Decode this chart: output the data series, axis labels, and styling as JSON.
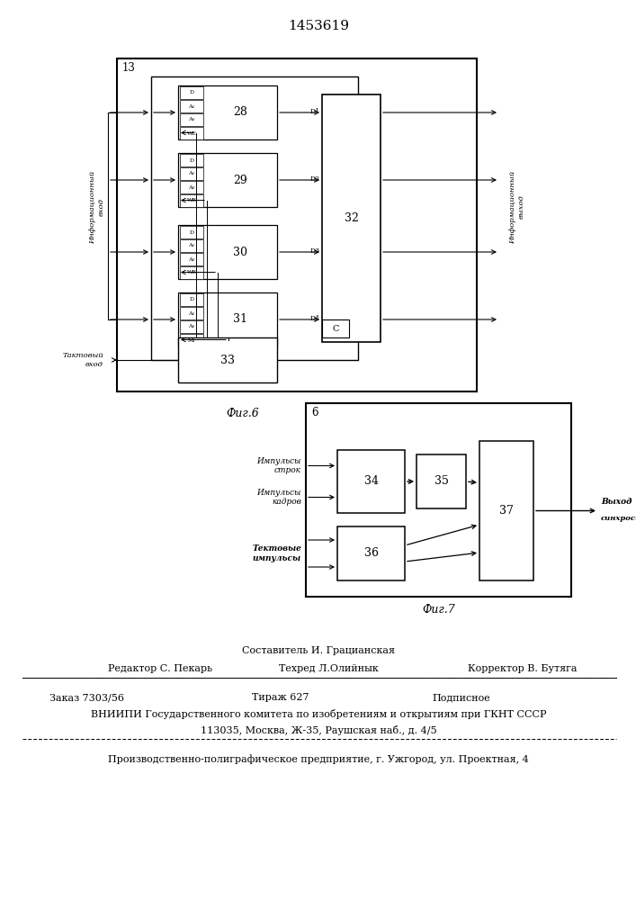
{
  "patent_number": "1453619",
  "fig6_label": "13",
  "fig6_caption": "Фиг.6",
  "fig7_caption": "Фиг.7",
  "fig7_label": "6",
  "info_vhod": "Информационный\nвход",
  "info_vyhod": "Информационный\nвыход",
  "takt_vhod": "Тактовый\nвход",
  "impulsy_strok": "Импульсы\nстрок",
  "impulsy_kadrov": "Импульсы\nкадров",
  "taktovye_impulsy": "Тектовые\nимпульсы",
  "vyhod_label1": "Выход",
  "vyhod_label2": "синхросигнала",
  "footer_comp": "Составитель И. Грацианская",
  "footer_ed": "Редактор С. Пекарь",
  "footer_tech": "Техред Л.Олийнык",
  "footer_corr": "Корректор В. Бутяга",
  "footer_order": "Заказ 7303/56",
  "footer_circ": "Тираж 627",
  "footer_sub": "Подписное",
  "footer_org": "ВНИИПИ Государственного комитета по изобретениям и открытиям при ГКНТ СССР",
  "footer_addr": "113035, Москва, Ж-35, Раушская наб., д. 4/5",
  "footer_print": "Производственно-полиграфическое предприятие, г. Ужгород, ул. Проектная, 4"
}
